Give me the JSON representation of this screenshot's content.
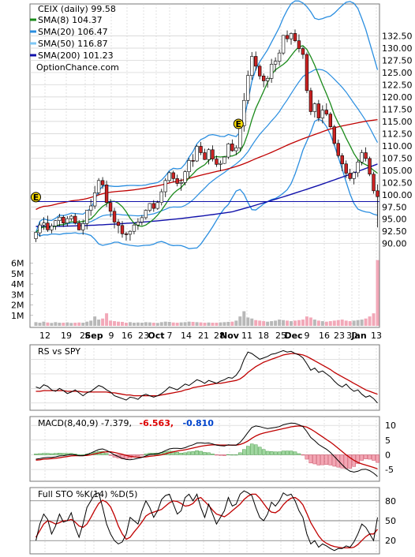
{
  "chart_data": {
    "type": "line",
    "symbol": "CEIX",
    "title": "CEIX (daily) 99.58",
    "watermark": "OptionChance.com",
    "legend": [
      {
        "label": "SMA(8) 104.37",
        "color": "#1a8a1a"
      },
      {
        "label": "SMA(20) 106.47",
        "color": "#2a8ee0"
      },
      {
        "label": "SMA(50) 116.87",
        "color": "#7dc7f5"
      },
      {
        "label": "SMA(200) 101.23",
        "color": "#1010aa"
      }
    ],
    "colors": {
      "bull": "#2e9e2e",
      "bear": "#cc2222",
      "bollinger": "#2a8ee0",
      "sma8": "#1a8a1a",
      "sma50": "#c00000",
      "sma200": "#1010aa",
      "volume_up": "#b8b8b8",
      "volume_down": "#f2a8b8",
      "grid": "#cfcfcf"
    },
    "price_panel": {
      "y_ticks": [
        "132.50",
        "130.00",
        "127.50",
        "125.00",
        "122.50",
        "120.00",
        "117.50",
        "115.00",
        "112.50",
        "110.00",
        "107.50",
        "105.00",
        "102.50",
        "100.00",
        "97.50",
        "95.00",
        "92.50",
        "90.00"
      ],
      "ylim": [
        88.5,
        135
      ],
      "volume_ticks": [
        "6M",
        "5M",
        "4M",
        "3M",
        "2M",
        "1M"
      ],
      "reference_line": 98.6,
      "event_markers": [
        {
          "label": "E",
          "date": "Aug 9",
          "price": 99.5
        },
        {
          "label": "E",
          "date": "Nov 2",
          "price": 114.5
        }
      ],
      "candles": [
        [
          91,
          92.4,
          90.3,
          92.3
        ],
        [
          92.2,
          94.4,
          91.4,
          93.8
        ],
        [
          93.8,
          95.4,
          92.8,
          94.2
        ],
        [
          94.2,
          95.7,
          92.4,
          92.8
        ],
        [
          92.8,
          94.1,
          92.1,
          93.6
        ],
        [
          93.6,
          94.8,
          92.8,
          94.7
        ],
        [
          94.7,
          96.1,
          93.5,
          95.4
        ],
        [
          95.4,
          95.8,
          93.4,
          94.2
        ],
        [
          94.2,
          95.6,
          93.5,
          95.1
        ],
        [
          95.1,
          95.9,
          94.6,
          95.6
        ],
        [
          95.6,
          96.2,
          93.9,
          94.2
        ],
        [
          94.2,
          94.8,
          92.7,
          92.8
        ],
        [
          92.8,
          94.9,
          91.8,
          94.1
        ],
        [
          94.1,
          96.8,
          92.9,
          96.8
        ],
        [
          96.8,
          99.1,
          95.7,
          97.7
        ],
        [
          97.7,
          101.8,
          97.1,
          100.4
        ],
        [
          100.4,
          103.4,
          99.9,
          102.9
        ],
        [
          102.9,
          103.6,
          101.2,
          102
        ],
        [
          102,
          102.9,
          97.5,
          98.4
        ],
        [
          98.4,
          99.1,
          95.4,
          96.6
        ],
        [
          96.6,
          97.3,
          93.1,
          94.4
        ],
        [
          94.4,
          95,
          92.1,
          93.7
        ],
        [
          93.7,
          94.6,
          91.2,
          92
        ],
        [
          92,
          92.4,
          90.6,
          91.9
        ],
        [
          91.9,
          92.7,
          90.6,
          92.5
        ],
        [
          92.5,
          94.3,
          91.9,
          93.8
        ],
        [
          93.8,
          95.2,
          92.8,
          94.4
        ],
        [
          94.4,
          95.8,
          93.7,
          95.3
        ],
        [
          95.3,
          97,
          94.9,
          96.8
        ],
        [
          96.8,
          98.3,
          96.4,
          98.2
        ],
        [
          98.2,
          98.9,
          96.5,
          97.2
        ],
        [
          97.2,
          98.8,
          96.9,
          98.4
        ],
        [
          98.4,
          101.2,
          97.8,
          100.6
        ],
        [
          100.6,
          103.4,
          99.5,
          102.9
        ],
        [
          102.9,
          104.8,
          102.5,
          104.5
        ],
        [
          104.5,
          104.9,
          102.6,
          103.3
        ],
        [
          103.3,
          104.1,
          101.7,
          102.3
        ],
        [
          102.3,
          103.3,
          100.8,
          102.5
        ],
        [
          102.5,
          105,
          101.9,
          104.7
        ],
        [
          104.7,
          107.5,
          103.3,
          107
        ],
        [
          107,
          108.3,
          105.7,
          106.9
        ],
        [
          106.9,
          110.2,
          106.7,
          109.9
        ],
        [
          109.9,
          110.8,
          108.1,
          108.6
        ],
        [
          108.6,
          109.4,
          107.1,
          107.2
        ],
        [
          107.2,
          109.5,
          106.2,
          109.2
        ],
        [
          109.2,
          110.1,
          106.8,
          107.3
        ],
        [
          107.3,
          108,
          105.7,
          106.2
        ],
        [
          106.2,
          107,
          104.8,
          106.4
        ],
        [
          106.4,
          107.8,
          106.3,
          107.7
        ],
        [
          107.7,
          110.6,
          107.3,
          110.4
        ],
        [
          110.4,
          111.3,
          108.8,
          109
        ],
        [
          109,
          110.1,
          108.1,
          109.6
        ],
        [
          109.6,
          114.5,
          108.9,
          114.1
        ],
        [
          114.1,
          120.8,
          112.9,
          119.3
        ],
        [
          119.3,
          125.4,
          118.6,
          124.4
        ],
        [
          124.4,
          129.2,
          123.5,
          128.3
        ],
        [
          128.3,
          129.3,
          125.4,
          126.3
        ],
        [
          126.3,
          126.7,
          123.6,
          124.3
        ],
        [
          124.3,
          124.8,
          122,
          123.3
        ],
        [
          123.3,
          124.3,
          121.9,
          123.8
        ],
        [
          123.8,
          127.8,
          122.9,
          126.7
        ],
        [
          126.7,
          128.1,
          125.2,
          127.3
        ],
        [
          127.3,
          129.7,
          126.4,
          129
        ],
        [
          129,
          132.7,
          128.6,
          132.6
        ],
        [
          132.6,
          133.6,
          131.2,
          131.9
        ],
        [
          131.9,
          133.2,
          130.7,
          133
        ],
        [
          133,
          133.8,
          131.2,
          131.5
        ],
        [
          131.5,
          132.8,
          129.1,
          129.9
        ],
        [
          129.9,
          130.3,
          127.8,
          128.7
        ],
        [
          128.7,
          129.1,
          120.8,
          121.3
        ],
        [
          121.3,
          121.9,
          116.3,
          117
        ],
        [
          117,
          118.9,
          115.8,
          118.6
        ],
        [
          118.6,
          119.4,
          115,
          115.7
        ],
        [
          115.7,
          118.3,
          114.6,
          117.3
        ],
        [
          117.3,
          118.7,
          116.1,
          116.5
        ],
        [
          116.5,
          116.9,
          113.6,
          113.9
        ],
        [
          113.9,
          114.3,
          110.1,
          110.5
        ],
        [
          110.5,
          111.3,
          107.6,
          108
        ],
        [
          108,
          108.5,
          104.8,
          106.3
        ],
        [
          106.3,
          107,
          103.4,
          104.4
        ],
        [
          104.4,
          105.3,
          102.8,
          103.3
        ],
        [
          103.3,
          104.8,
          102.1,
          104.5
        ],
        [
          104.5,
          107.2,
          103.6,
          106.7
        ],
        [
          106.7,
          109.2,
          106,
          108.6
        ],
        [
          108.6,
          109.7,
          106.8,
          107.4
        ],
        [
          107.4,
          107.8,
          103.8,
          104.2
        ],
        [
          104.2,
          104.7,
          100.2,
          100.8
        ],
        [
          100.8,
          102.1,
          93.3,
          99.6
        ]
      ],
      "volume_M": [
        0.35,
        0.3,
        0.4,
        0.32,
        0.28,
        0.35,
        0.3,
        0.3,
        0.33,
        0.28,
        0.3,
        0.32,
        0.3,
        0.4,
        0.5,
        0.9,
        0.6,
        0.7,
        1.2,
        0.5,
        0.45,
        0.4,
        0.38,
        0.3,
        0.35,
        0.3,
        0.32,
        0.3,
        0.35,
        0.33,
        0.3,
        0.28,
        0.35,
        0.4,
        0.38,
        0.32,
        0.3,
        0.33,
        0.35,
        0.4,
        0.38,
        0.35,
        0.33,
        0.3,
        0.32,
        0.3,
        0.3,
        0.33,
        0.35,
        0.38,
        0.4,
        0.5,
        0.9,
        1.4,
        0.8,
        0.7,
        0.55,
        0.5,
        0.45,
        0.4,
        0.45,
        0.5,
        0.6,
        0.55,
        0.5,
        0.45,
        0.5,
        0.55,
        0.6,
        0.9,
        0.8,
        0.6,
        0.5,
        0.45,
        0.4,
        0.45,
        0.5,
        0.55,
        0.6,
        0.5,
        0.45,
        0.5,
        0.55,
        0.6,
        0.7,
        0.9,
        1.2,
        6.3
      ]
    },
    "x_axis": {
      "labels": [
        {
          "text": "12",
          "bold": false
        },
        {
          "text": "19",
          "bold": false
        },
        {
          "text": "26",
          "bold": false
        },
        {
          "text": "Sep",
          "bold": true
        },
        {
          "text": "9",
          "bold": false
        },
        {
          "text": "16",
          "bold": false
        },
        {
          "text": "23",
          "bold": false
        },
        {
          "text": "Oct",
          "bold": true
        },
        {
          "text": "7",
          "bold": false
        },
        {
          "text": "14",
          "bold": false
        },
        {
          "text": "21",
          "bold": false
        },
        {
          "text": "28",
          "bold": false
        },
        {
          "text": "Nov",
          "bold": true
        },
        {
          "text": "11",
          "bold": false
        },
        {
          "text": "18",
          "bold": false
        },
        {
          "text": "25",
          "bold": false
        },
        {
          "text": "Dec",
          "bold": true
        },
        {
          "text": "9",
          "bold": false
        },
        {
          "text": "16",
          "bold": false
        },
        {
          "text": "23",
          "bold": false
        },
        {
          "text": "30",
          "bold": false
        },
        {
          "text": "Jan",
          "bold": true
        },
        {
          "text": "13",
          "bold": false
        }
      ]
    },
    "rs_panel": {
      "label": "RS vs SPY",
      "rs": [
        0.42,
        0.4,
        0.45,
        0.43,
        0.38,
        0.36,
        0.4,
        0.37,
        0.33,
        0.35,
        0.38,
        0.34,
        0.3,
        0.34,
        0.36,
        0.4,
        0.44,
        0.42,
        0.38,
        0.35,
        0.3,
        0.28,
        0.26,
        0.24,
        0.28,
        0.27,
        0.25,
        0.3,
        0.32,
        0.3,
        0.28,
        0.3,
        0.33,
        0.37,
        0.42,
        0.4,
        0.38,
        0.42,
        0.46,
        0.44,
        0.48,
        0.52,
        0.5,
        0.47,
        0.51,
        0.49,
        0.47,
        0.5,
        0.52,
        0.55,
        0.54,
        0.58,
        0.66,
        0.8,
        0.9,
        0.88,
        0.84,
        0.8,
        0.82,
        0.84,
        0.87,
        0.88,
        0.9,
        0.92,
        0.9,
        0.91,
        0.88,
        0.86,
        0.82,
        0.74,
        0.65,
        0.68,
        0.62,
        0.64,
        0.6,
        0.56,
        0.5,
        0.45,
        0.42,
        0.46,
        0.4,
        0.36,
        0.38,
        0.32,
        0.28,
        0.3,
        0.26,
        0.2
      ],
      "ma": [
        0.36,
        0.36,
        0.37,
        0.37,
        0.37,
        0.37,
        0.37,
        0.37,
        0.36,
        0.36,
        0.36,
        0.36,
        0.35,
        0.35,
        0.35,
        0.35,
        0.35,
        0.35,
        0.35,
        0.34,
        0.34,
        0.33,
        0.32,
        0.31,
        0.31,
        0.3,
        0.3,
        0.3,
        0.3,
        0.3,
        0.3,
        0.3,
        0.31,
        0.32,
        0.33,
        0.34,
        0.35,
        0.36,
        0.38,
        0.39,
        0.41,
        0.42,
        0.43,
        0.44,
        0.45,
        0.46,
        0.47,
        0.47,
        0.48,
        0.49,
        0.5,
        0.51,
        0.53,
        0.57,
        0.62,
        0.66,
        0.7,
        0.73,
        0.76,
        0.78,
        0.8,
        0.82,
        0.84,
        0.86,
        0.87,
        0.88,
        0.88,
        0.87,
        0.86,
        0.84,
        0.81,
        0.78,
        0.75,
        0.72,
        0.69,
        0.66,
        0.62,
        0.59,
        0.56,
        0.53,
        0.5,
        0.47,
        0.44,
        0.41,
        0.38,
        0.36,
        0.34,
        0.32
      ]
    },
    "macd_panel": {
      "label": "MACD(8,40,9) -7.379,",
      "macd_value": "-6.563,",
      "signal_value": "-0.810",
      "macd_color": "#dd0000",
      "signal_color": "#0044cc",
      "y_ticks": [
        "10",
        "5",
        "0",
        "-5"
      ],
      "ylim": [
        -9,
        13
      ],
      "macd": [
        -1.5,
        -1.3,
        -1,
        -0.9,
        -0.9,
        -0.7,
        -0.4,
        -0.3,
        -0.1,
        0.1,
        0,
        -0.3,
        -0.3,
        0.1,
        0.6,
        1.2,
        1.8,
        2,
        1.5,
        0.8,
        0,
        -0.6,
        -1.2,
        -1.6,
        -1.7,
        -1.5,
        -1.2,
        -0.9,
        -0.4,
        0.1,
        0.2,
        0.4,
        0.8,
        1.4,
        2,
        2.2,
        2.2,
        2.1,
        2.4,
        3,
        3.4,
        4,
        4.1,
        3.9,
        4,
        3.7,
        3.3,
        3.1,
        3,
        3.4,
        3.3,
        3.3,
        4.2,
        5.8,
        7.6,
        9.3,
        9.8,
        9.6,
        9.2,
        8.9,
        9.1,
        9.3,
        9.6,
        10.2,
        10.5,
        10.8,
        10.7,
        10.2,
        9.6,
        7.9,
        5.9,
        4.8,
        3.5,
        2.7,
        1.9,
        0.8,
        -0.6,
        -2,
        -3.4,
        -4.7,
        -5.6,
        -5.9,
        -5.6,
        -5,
        -4.9,
        -5.4,
        -6.2,
        -7.4
      ],
      "signal": [
        -1.8,
        -1.7,
        -1.5,
        -1.4,
        -1.3,
        -1.2,
        -1,
        -0.8,
        -0.6,
        -0.4,
        -0.3,
        -0.3,
        -0.3,
        -0.2,
        0,
        0.3,
        0.6,
        0.9,
        1,
        1,
        0.8,
        0.5,
        0.2,
        -0.2,
        -0.5,
        -0.7,
        -0.8,
        -0.8,
        -0.7,
        -0.5,
        -0.4,
        -0.2,
        0,
        0.3,
        0.7,
        1,
        1.3,
        1.5,
        1.7,
        2,
        2.3,
        2.6,
        2.9,
        3.1,
        3.3,
        3.4,
        3.4,
        3.3,
        3.3,
        3.3,
        3.3,
        3.3,
        3.5,
        4,
        4.7,
        5.6,
        6.4,
        7,
        7.4,
        7.7,
        8,
        8.3,
        8.6,
        8.9,
        9.2,
        9.5,
        9.7,
        9.8,
        9.7,
        9.4,
        8.7,
        7.9,
        7,
        6.1,
        5.2,
        4.3,
        3.3,
        2.2,
        1.1,
        0,
        -1,
        -1.9,
        -2.6,
        -3.1,
        -3.5,
        -3.9,
        -4.3,
        -4.8
      ]
    },
    "sto_panel": {
      "label": "Full STO %K(14) %D(5)",
      "y_ticks": [
        "80",
        "50",
        "20"
      ],
      "k": [
        20,
        45,
        60,
        52,
        30,
        42,
        60,
        48,
        50,
        62,
        40,
        25,
        45,
        70,
        80,
        90,
        92,
        70,
        45,
        30,
        20,
        15,
        18,
        30,
        55,
        50,
        45,
        65,
        80,
        70,
        55,
        65,
        82,
        88,
        90,
        75,
        60,
        65,
        85,
        90,
        80,
        90,
        70,
        55,
        75,
        60,
        45,
        55,
        65,
        85,
        72,
        75,
        90,
        95,
        92,
        88,
        70,
        55,
        50,
        60,
        78,
        72,
        80,
        92,
        88,
        90,
        80,
        65,
        55,
        30,
        15,
        20,
        10,
        15,
        12,
        8,
        5,
        8,
        8,
        12,
        10,
        18,
        30,
        45,
        40,
        30,
        20,
        55
      ],
      "d": [
        25,
        35,
        45,
        50,
        48,
        45,
        47,
        50,
        50,
        52,
        48,
        42,
        40,
        45,
        55,
        66,
        76,
        81,
        78,
        71,
        58,
        42,
        30,
        22,
        25,
        33,
        40,
        48,
        57,
        61,
        63,
        65,
        67,
        72,
        77,
        80,
        79,
        76,
        72,
        73,
        76,
        83,
        85,
        79,
        73,
        66,
        60,
        58,
        56,
        60,
        65,
        70,
        75,
        82,
        87,
        90,
        90,
        84,
        76,
        68,
        63,
        62,
        66,
        74,
        80,
        84,
        85,
        81,
        74,
        61,
        47,
        37,
        27,
        20,
        16,
        13,
        11,
        10,
        9,
        9,
        9,
        10,
        14,
        20,
        26,
        30,
        30,
        37
      ]
    }
  }
}
